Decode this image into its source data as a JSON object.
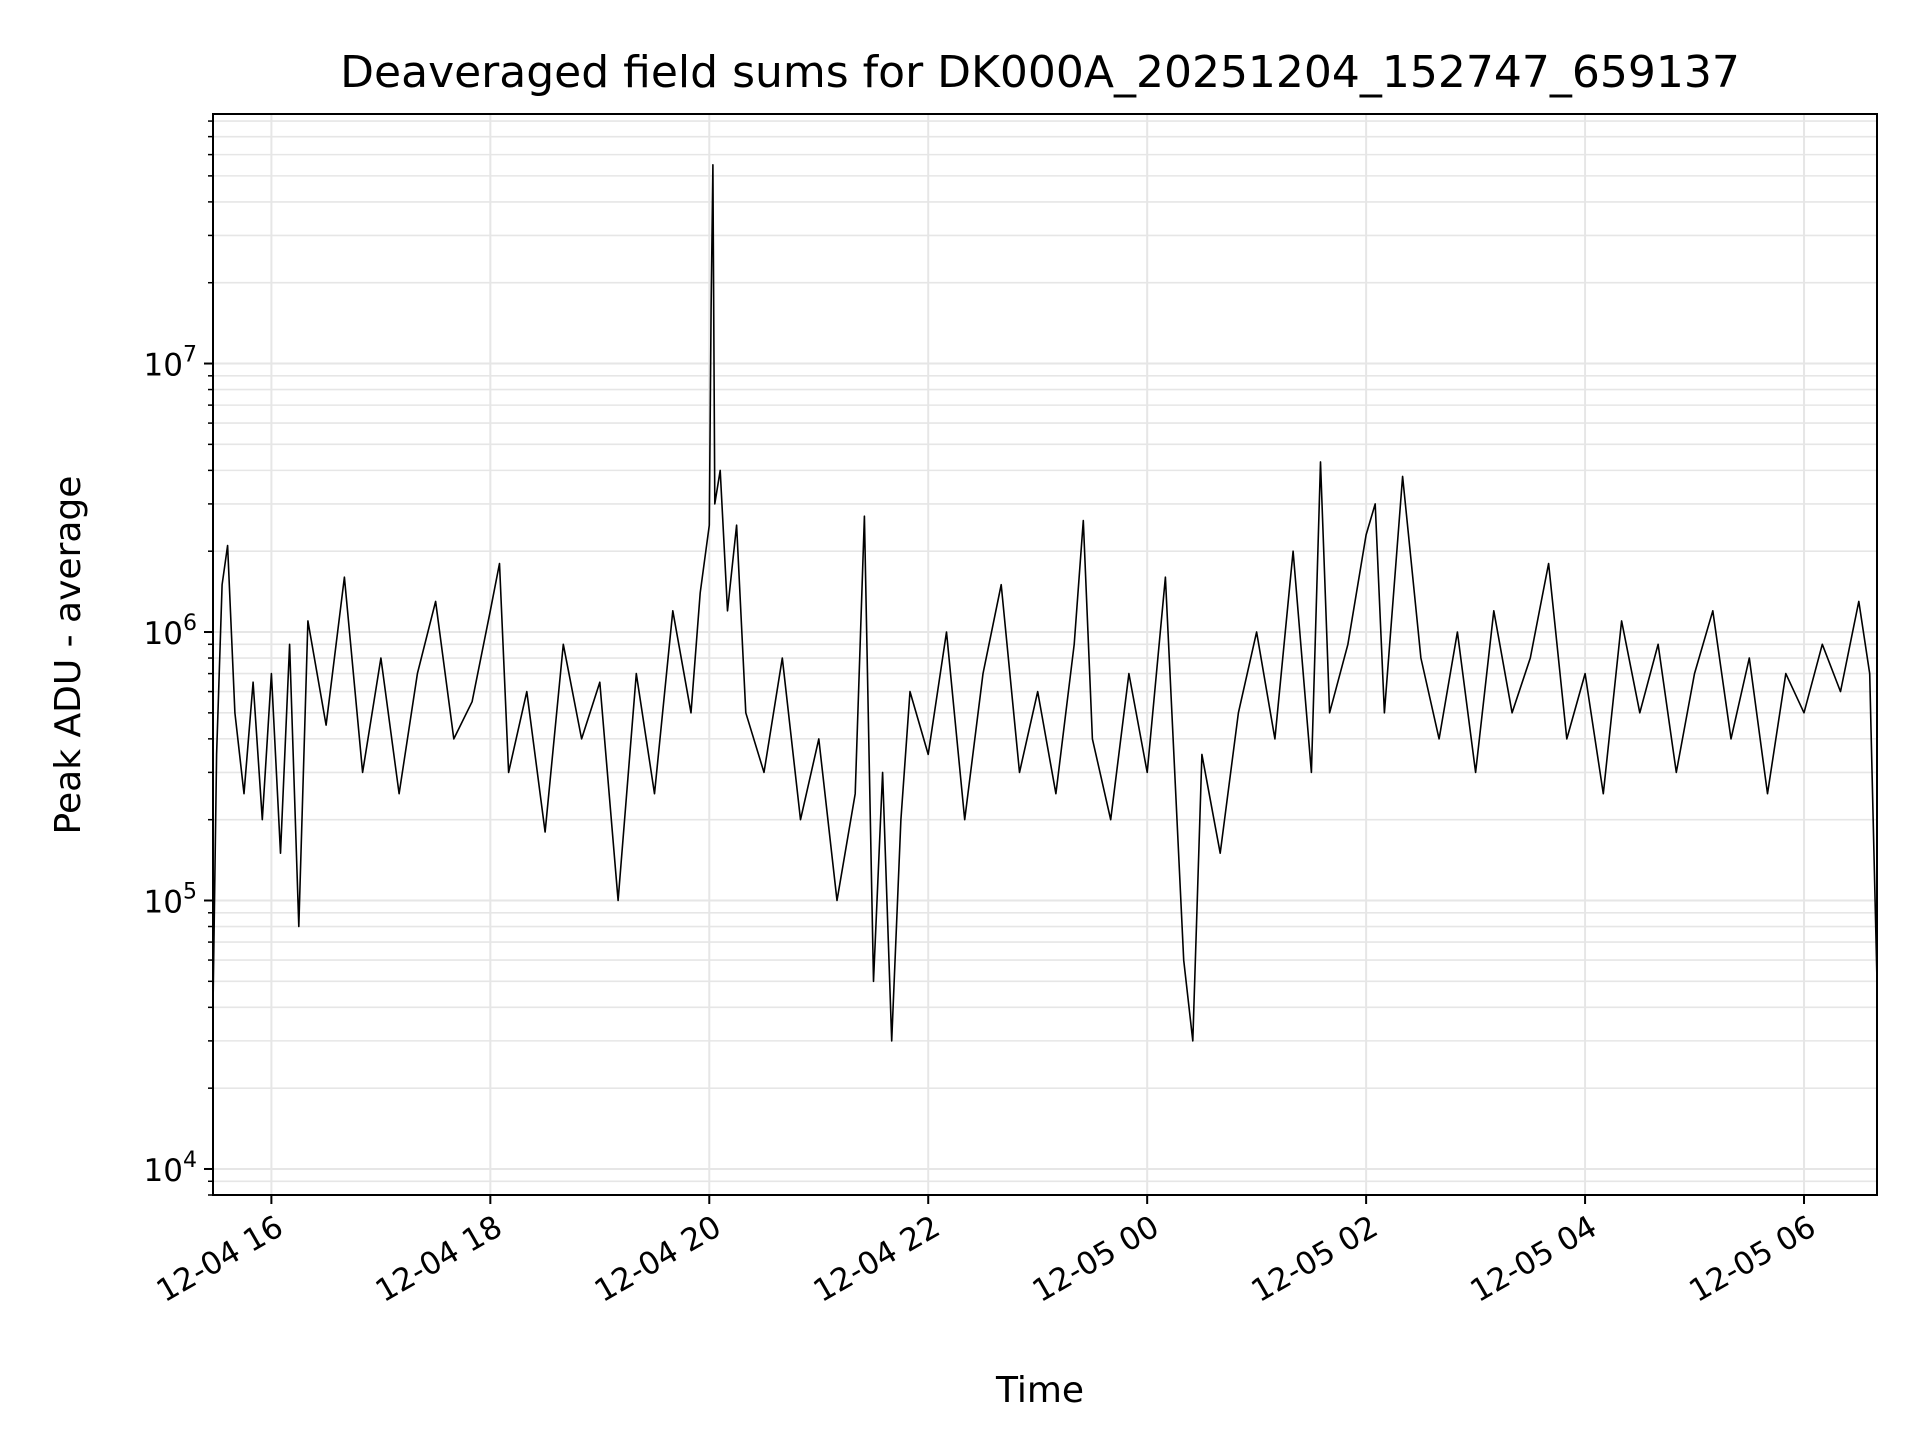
{
  "chart_data": {
    "type": "line",
    "title": "Deaveraged field sums for DK000A_20251204_152747_659137",
    "xlabel": "Time",
    "ylabel": "Peak ADU - average",
    "xlim": [
      "2025-12-04 15:28",
      "2025-12-05 06:40"
    ],
    "ylim": [
      8000,
      85000000
    ],
    "yscale": "log",
    "grid": true,
    "line_color": "#000000",
    "grid_color": "#e6e6e6",
    "x_ticks": [
      {
        "t": "2025-12-04 16:00",
        "label": "12-04 16"
      },
      {
        "t": "2025-12-04 18:00",
        "label": "12-04 18"
      },
      {
        "t": "2025-12-04 20:00",
        "label": "12-04 20"
      },
      {
        "t": "2025-12-04 22:00",
        "label": "12-04 22"
      },
      {
        "t": "2025-12-05 00:00",
        "label": "12-05 00"
      },
      {
        "t": "2025-12-05 02:00",
        "label": "12-05 02"
      },
      {
        "t": "2025-12-05 04:00",
        "label": "12-05 04"
      },
      {
        "t": "2025-12-05 06:00",
        "label": "12-05 06"
      }
    ],
    "y_ticks": [
      {
        "value": 10000,
        "base": "10",
        "exp": "4"
      },
      {
        "value": 100000,
        "base": "10",
        "exp": "5"
      },
      {
        "value": 1000000,
        "base": "10",
        "exp": "6"
      },
      {
        "value": 10000000,
        "base": "10",
        "exp": "7"
      }
    ],
    "series": [
      {
        "points": [
          [
            "2025-12-04 15:28",
            40000
          ],
          [
            "2025-12-04 15:30",
            350000
          ],
          [
            "2025-12-04 15:33",
            1500000
          ],
          [
            "2025-12-04 15:36",
            2100000
          ],
          [
            "2025-12-04 15:40",
            500000
          ],
          [
            "2025-12-04 15:45",
            250000
          ],
          [
            "2025-12-04 15:50",
            650000
          ],
          [
            "2025-12-04 15:55",
            200000
          ],
          [
            "2025-12-04 16:00",
            700000
          ],
          [
            "2025-12-04 16:05",
            150000
          ],
          [
            "2025-12-04 16:10",
            900000
          ],
          [
            "2025-12-04 16:15",
            80000
          ],
          [
            "2025-12-04 16:20",
            1100000
          ],
          [
            "2025-12-04 16:30",
            450000
          ],
          [
            "2025-12-04 16:40",
            1600000
          ],
          [
            "2025-12-04 16:50",
            300000
          ],
          [
            "2025-12-04 17:00",
            800000
          ],
          [
            "2025-12-04 17:10",
            250000
          ],
          [
            "2025-12-04 17:20",
            700000
          ],
          [
            "2025-12-04 17:30",
            1300000
          ],
          [
            "2025-12-04 17:40",
            400000
          ],
          [
            "2025-12-04 17:50",
            550000
          ],
          [
            "2025-12-04 18:00",
            1200000
          ],
          [
            "2025-12-04 18:05",
            1800000
          ],
          [
            "2025-12-04 18:10",
            300000
          ],
          [
            "2025-12-04 18:20",
            600000
          ],
          [
            "2025-12-04 18:30",
            180000
          ],
          [
            "2025-12-04 18:40",
            900000
          ],
          [
            "2025-12-04 18:50",
            400000
          ],
          [
            "2025-12-04 19:00",
            650000
          ],
          [
            "2025-12-04 19:10",
            100000
          ],
          [
            "2025-12-04 19:20",
            700000
          ],
          [
            "2025-12-04 19:30",
            250000
          ],
          [
            "2025-12-04 19:40",
            1200000
          ],
          [
            "2025-12-04 19:50",
            500000
          ],
          [
            "2025-12-04 19:55",
            1400000
          ],
          [
            "2025-12-04 20:00",
            2500000
          ],
          [
            "2025-12-04 20:01",
            16000000
          ],
          [
            "2025-12-04 20:02",
            55000000
          ],
          [
            "2025-12-04 20:03",
            3000000
          ],
          [
            "2025-12-04 20:06",
            4000000
          ],
          [
            "2025-12-04 20:10",
            1200000
          ],
          [
            "2025-12-04 20:15",
            2500000
          ],
          [
            "2025-12-04 20:20",
            500000
          ],
          [
            "2025-12-04 20:30",
            300000
          ],
          [
            "2025-12-04 20:40",
            800000
          ],
          [
            "2025-12-04 20:50",
            200000
          ],
          [
            "2025-12-04 21:00",
            400000
          ],
          [
            "2025-12-04 21:10",
            100000
          ],
          [
            "2025-12-04 21:20",
            250000
          ],
          [
            "2025-12-04 21:25",
            2700000
          ],
          [
            "2025-12-04 21:30",
            50000
          ],
          [
            "2025-12-04 21:35",
            300000
          ],
          [
            "2025-12-04 21:40",
            30000
          ],
          [
            "2025-12-04 21:45",
            200000
          ],
          [
            "2025-12-04 21:50",
            600000
          ],
          [
            "2025-12-04 22:00",
            350000
          ],
          [
            "2025-12-04 22:10",
            1000000
          ],
          [
            "2025-12-04 22:20",
            200000
          ],
          [
            "2025-12-04 22:30",
            700000
          ],
          [
            "2025-12-04 22:40",
            1500000
          ],
          [
            "2025-12-04 22:50",
            300000
          ],
          [
            "2025-12-04 23:00",
            600000
          ],
          [
            "2025-12-04 23:10",
            250000
          ],
          [
            "2025-12-04 23:20",
            900000
          ],
          [
            "2025-12-04 23:25",
            2600000
          ],
          [
            "2025-12-04 23:30",
            400000
          ],
          [
            "2025-12-04 23:40",
            200000
          ],
          [
            "2025-12-04 23:50",
            700000
          ],
          [
            "2025-12-05 00:00",
            300000
          ],
          [
            "2025-12-05 00:10",
            1600000
          ],
          [
            "2025-12-05 00:20",
            60000
          ],
          [
            "2025-12-05 00:25",
            30000
          ],
          [
            "2025-12-05 00:30",
            350000
          ],
          [
            "2025-12-05 00:40",
            150000
          ],
          [
            "2025-12-05 00:50",
            500000
          ],
          [
            "2025-12-05 01:00",
            1000000
          ],
          [
            "2025-12-05 01:10",
            400000
          ],
          [
            "2025-12-05 01:20",
            2000000
          ],
          [
            "2025-12-05 01:30",
            300000
          ],
          [
            "2025-12-05 01:35",
            4300000
          ],
          [
            "2025-12-05 01:40",
            500000
          ],
          [
            "2025-12-05 01:50",
            900000
          ],
          [
            "2025-12-05 02:00",
            2300000
          ],
          [
            "2025-12-05 02:05",
            3000000
          ],
          [
            "2025-12-05 02:10",
            500000
          ],
          [
            "2025-12-05 02:20",
            3800000
          ],
          [
            "2025-12-05 02:30",
            800000
          ],
          [
            "2025-12-05 02:40",
            400000
          ],
          [
            "2025-12-05 02:50",
            1000000
          ],
          [
            "2025-12-05 03:00",
            300000
          ],
          [
            "2025-12-05 03:10",
            1200000
          ],
          [
            "2025-12-05 03:20",
            500000
          ],
          [
            "2025-12-05 03:30",
            800000
          ],
          [
            "2025-12-05 03:40",
            1800000
          ],
          [
            "2025-12-05 03:50",
            400000
          ],
          [
            "2025-12-05 04:00",
            700000
          ],
          [
            "2025-12-05 04:10",
            250000
          ],
          [
            "2025-12-05 04:20",
            1100000
          ],
          [
            "2025-12-05 04:30",
            500000
          ],
          [
            "2025-12-05 04:40",
            900000
          ],
          [
            "2025-12-05 04:50",
            300000
          ],
          [
            "2025-12-05 05:00",
            700000
          ],
          [
            "2025-12-05 05:10",
            1200000
          ],
          [
            "2025-12-05 05:20",
            400000
          ],
          [
            "2025-12-05 05:30",
            800000
          ],
          [
            "2025-12-05 05:40",
            250000
          ],
          [
            "2025-12-05 05:50",
            700000
          ],
          [
            "2025-12-05 06:00",
            500000
          ],
          [
            "2025-12-05 06:10",
            900000
          ],
          [
            "2025-12-05 06:20",
            600000
          ],
          [
            "2025-12-05 06:30",
            1300000
          ],
          [
            "2025-12-05 06:36",
            700000
          ],
          [
            "2025-12-05 06:40",
            50000
          ]
        ]
      }
    ]
  }
}
